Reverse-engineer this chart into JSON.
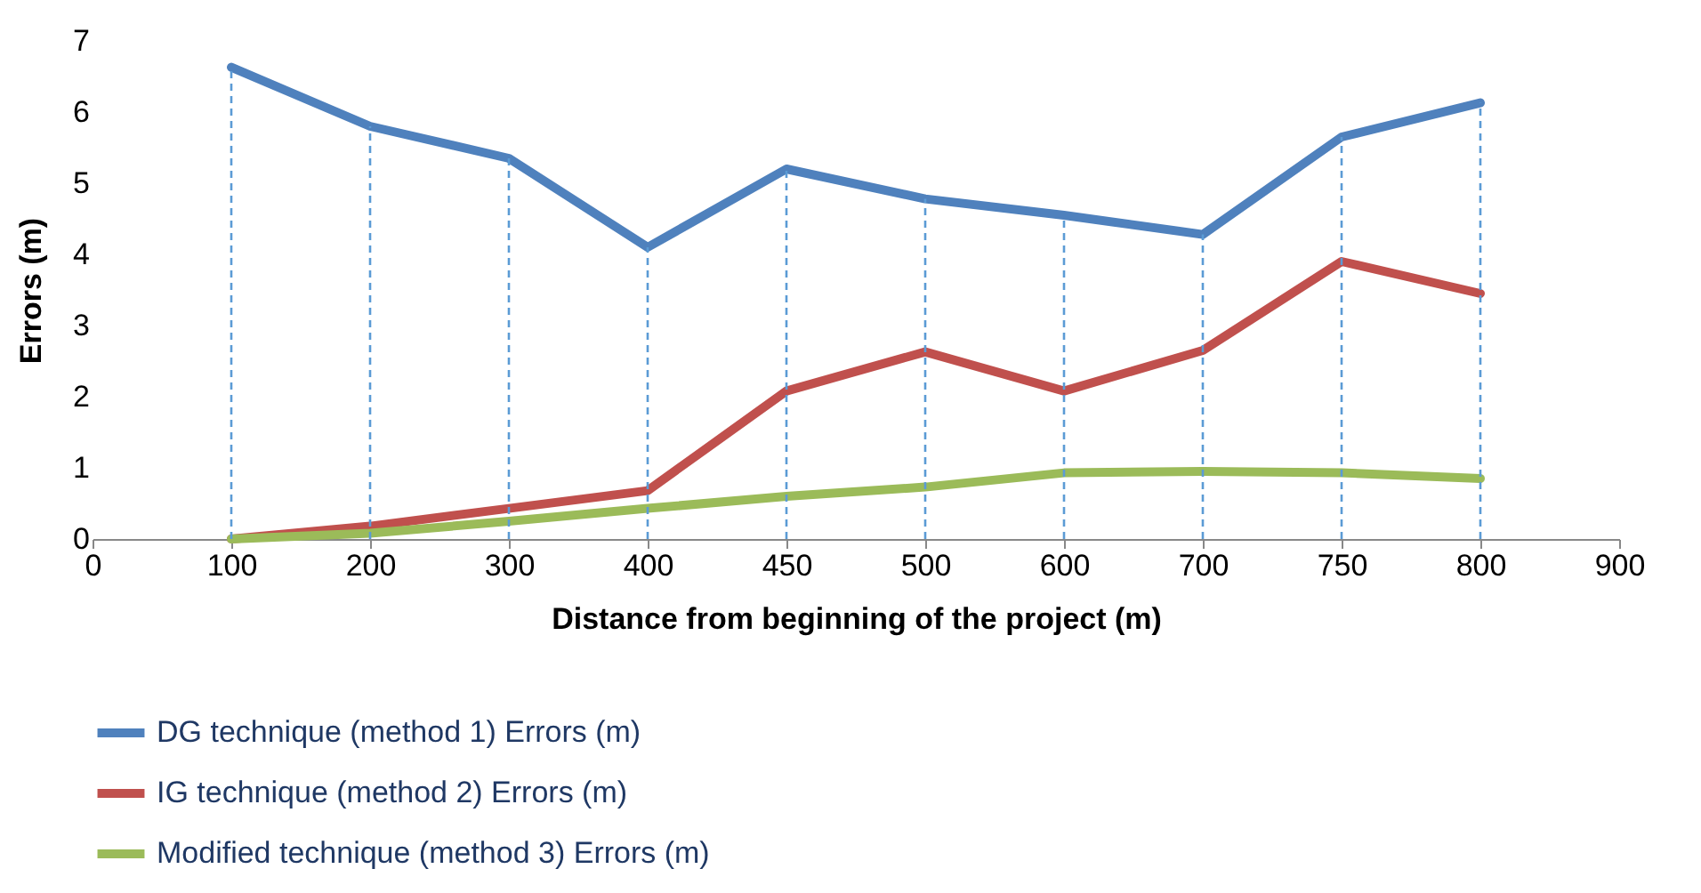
{
  "chart_data": {
    "type": "line",
    "xlabel": "Distance from beginning of the project (m)",
    "ylabel": "Errors (m)",
    "categories": [
      "0",
      "100",
      "200",
      "300",
      "400",
      "450",
      "500",
      "600",
      "700",
      "750",
      "800",
      "900"
    ],
    "series": [
      {
        "name": "DG  technique (method 1) Errors (m)",
        "color": "#4f81bd",
        "values": [
          null,
          6.63,
          5.8,
          5.35,
          4.1,
          5.2,
          4.78,
          4.55,
          4.28,
          5.65,
          6.13,
          null
        ]
      },
      {
        "name": "IG technique (method 2) Errors (m)",
        "color": "#c0504d",
        "values": [
          null,
          0,
          0.18,
          0.43,
          0.68,
          2.08,
          2.63,
          2.08,
          2.65,
          3.9,
          3.45,
          null
        ]
      },
      {
        "name": "Modified technique (method 3) Errors (m)",
        "color": "#9bbb59",
        "values": [
          null,
          0,
          0.08,
          0.25,
          0.43,
          0.6,
          0.73,
          0.93,
          0.95,
          0.93,
          0.85,
          null
        ]
      }
    ],
    "ylim": [
      0,
      7
    ],
    "yticks": [
      0,
      1,
      2,
      3,
      4,
      5,
      6,
      7
    ],
    "grid": false,
    "legend": "bottom",
    "ref_lines": [
      {
        "axis": "x",
        "value": "100",
        "color": "#5b9bd5",
        "line_style": "dashed"
      },
      {
        "axis": "x",
        "value": "200",
        "color": "#5b9bd5",
        "line_style": "dashed"
      },
      {
        "axis": "x",
        "value": "300",
        "color": "#5b9bd5",
        "line_style": "dashed"
      },
      {
        "axis": "x",
        "value": "400",
        "color": "#5b9bd5",
        "line_style": "dashed"
      },
      {
        "axis": "x",
        "value": "450",
        "color": "#5b9bd5",
        "line_style": "dashed"
      },
      {
        "axis": "x",
        "value": "500",
        "color": "#5b9bd5",
        "line_style": "dashed"
      },
      {
        "axis": "x",
        "value": "600",
        "color": "#5b9bd5",
        "line_style": "dashed"
      },
      {
        "axis": "x",
        "value": "700",
        "color": "#5b9bd5",
        "line_style": "dashed"
      },
      {
        "axis": "x",
        "value": "750",
        "color": "#5b9bd5",
        "line_style": "dashed"
      },
      {
        "axis": "x",
        "value": "800",
        "color": "#5b9bd5",
        "line_style": "dashed"
      }
    ]
  }
}
